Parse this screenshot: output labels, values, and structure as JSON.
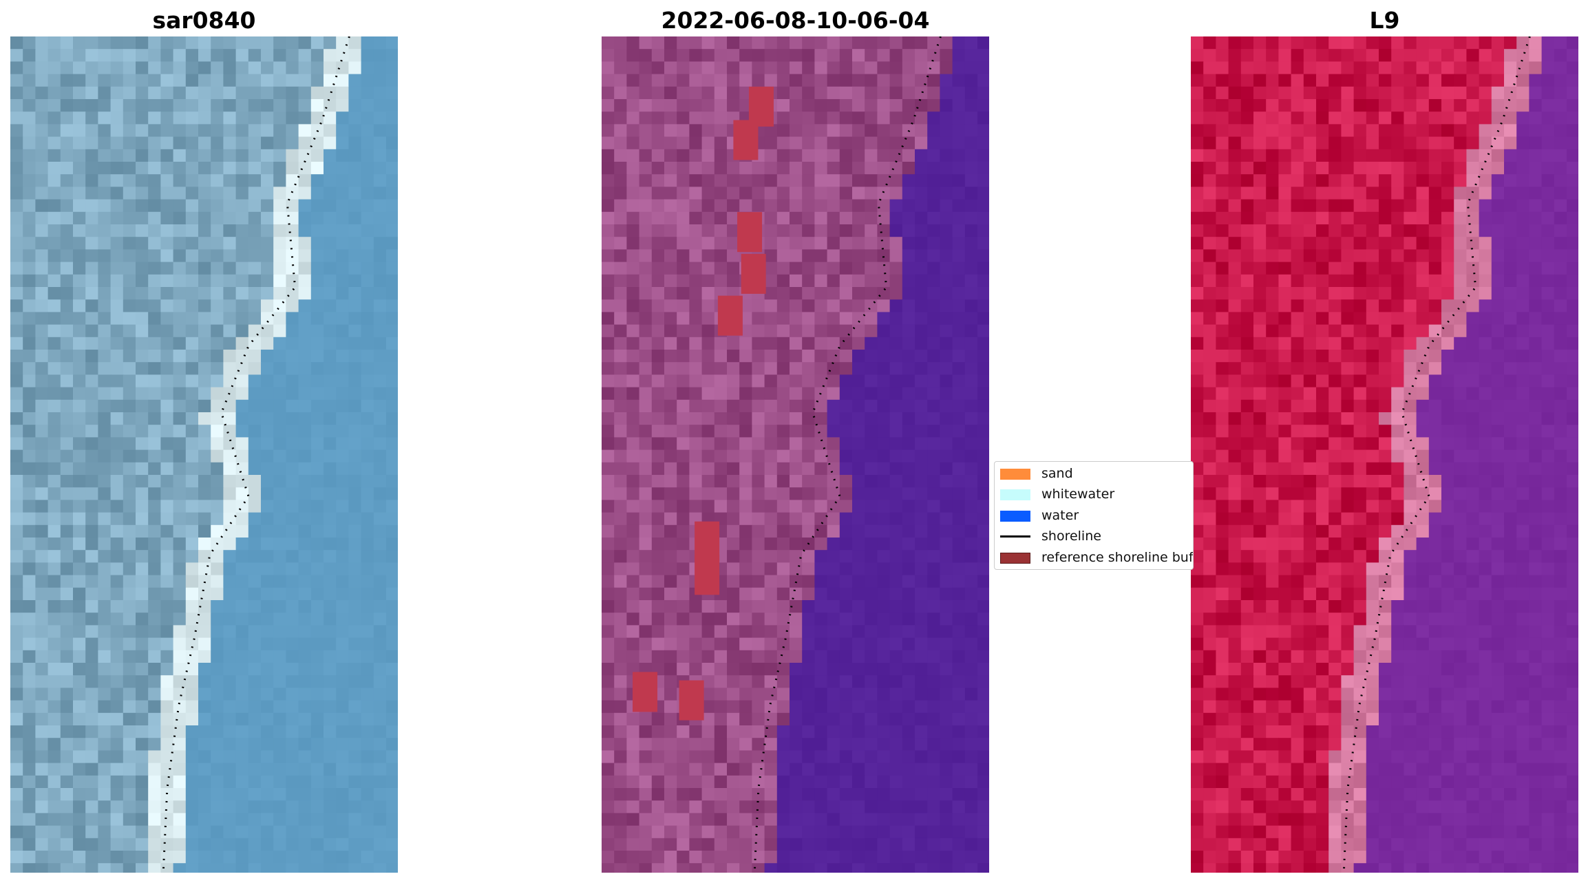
{
  "panels": [
    {
      "title": "sar0840",
      "render": "rgb",
      "base": "#7fa8bf",
      "sea": "#5f9dc4",
      "coast": "#d7e8ec"
    },
    {
      "title": "2022-06-08-10-06-04",
      "render": "classified",
      "base": "#9a4d86",
      "sea": "#55239a",
      "sand": "#c0394e"
    },
    {
      "title": "L9",
      "render": "false-color",
      "base": "#c8174a",
      "sea": "#7a2a9e",
      "coast": "#d47aa0"
    }
  ],
  "legend": {
    "items": [
      {
        "label": "sand",
        "color": "#ff8c3a",
        "icon": "patch"
      },
      {
        "label": "whitewater",
        "color": "#c6fcfc",
        "icon": "patch"
      },
      {
        "label": "water",
        "color": "#0a5cff",
        "icon": "patch"
      },
      {
        "label": "shoreline",
        "color": "#000000",
        "icon": "line"
      },
      {
        "label": "reference shoreline buffer",
        "color": "#9a3234",
        "icon": "patch"
      }
    ]
  }
}
